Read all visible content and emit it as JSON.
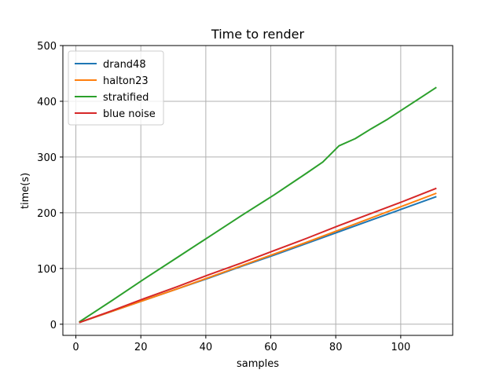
{
  "chart_data": {
    "type": "line",
    "title": "Time to render",
    "xlabel": "samples",
    "ylabel": "time(s)",
    "xlim": [
      -4,
      116
    ],
    "ylim": [
      -20,
      500
    ],
    "xticks": [
      0,
      20,
      40,
      60,
      80,
      100
    ],
    "yticks": [
      0,
      100,
      200,
      300,
      400,
      500
    ],
    "grid": true,
    "legend_position": "upper-left",
    "series": [
      {
        "name": "drand48",
        "color": "#1f77b4",
        "x": [
          1,
          11,
          21,
          31,
          41,
          51,
          61,
          71,
          81,
          91,
          101,
          111
        ],
        "y": [
          3,
          23,
          43,
          63,
          83,
          104,
          124,
          145,
          166,
          187,
          208,
          229
        ]
      },
      {
        "name": "halton23",
        "color": "#ff7f0e",
        "x": [
          1,
          11,
          21,
          31,
          41,
          51,
          61,
          71,
          81,
          91,
          101,
          111
        ],
        "y": [
          3,
          23,
          43,
          63,
          84,
          105,
          126,
          147,
          169,
          191,
          213,
          235
        ]
      },
      {
        "name": "stratified",
        "color": "#2ca02c",
        "x": [
          1,
          11,
          21,
          31,
          41,
          51,
          61,
          71,
          76,
          81,
          86,
          91,
          96,
          101,
          106,
          111
        ],
        "y": [
          4,
          42,
          81,
          119,
          157,
          195,
          232,
          271,
          291,
          320,
          333,
          351,
          368,
          387,
          406,
          425
        ]
      },
      {
        "name": "blue noise",
        "color": "#d62728",
        "x": [
          1,
          11,
          21,
          31,
          41,
          51,
          61,
          71,
          81,
          91,
          101,
          111
        ],
        "y": [
          3,
          24,
          46,
          67,
          89,
          110,
          132,
          154,
          177,
          199,
          221,
          244
        ]
      }
    ]
  }
}
